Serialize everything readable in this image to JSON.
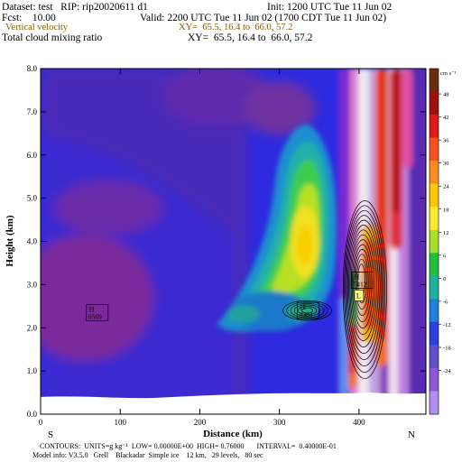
{
  "header": {
    "dataset_line": "Dataset: test   RIP: rip20020611 d1",
    "init_line": "Init: 1200 UTC Tue 11 Jun 02",
    "fcst_line": "Fcst:    10.00",
    "valid_line": "Valid: 2200 UTC Tue 11 Jun 02 (1700 CDT Tue 11 Jun 02)",
    "overlay_field": "Vertical velocity",
    "overlay_xy": "XY=  65.5, 16.4 to  66.0, 57.2",
    "main_field": "Total cloud mixing ratio",
    "main_xy": "XY=  65.5, 16.4 to  66.0, 57.2",
    "colors": {
      "overlay": "#8b5a00",
      "text": "#000000"
    }
  },
  "chart_data": {
    "type": "heatmap",
    "title": "Total cloud mixing ratio",
    "overlay": "Vertical velocity",
    "xlabel": "Distance (km)",
    "ylabel": "Height (km)",
    "xlim": [
      0,
      484
    ],
    "ylim": [
      0,
      8
    ],
    "xticks": [
      "0",
      "100",
      "200",
      "300",
      "400"
    ],
    "yticks": [
      "0.0",
      "1.0",
      "2.0",
      "3.0",
      "4.0",
      "5.0",
      "6.0",
      "7.0",
      "8.0"
    ],
    "endpoint_labels": {
      "left": "S",
      "right": "N"
    },
    "colorbar": {
      "unit": "cm s⁻¹",
      "levels": [
        48,
        42,
        36,
        30,
        24,
        18,
        12,
        6,
        0,
        -6,
        -12,
        -18,
        -24
      ],
      "labels": [
        "48",
        "42",
        "36",
        "30",
        "24",
        "18",
        "12",
        "6",
        "0",
        "-6",
        "-12",
        "-18",
        "-24"
      ]
    },
    "markers": [
      {
        "type": "H",
        "value": "0569",
        "x": 70,
        "y": 2.35
      },
      {
        "type": "H",
        "value": "4304",
        "x": 335,
        "y": 2.4
      },
      {
        "type": "H",
        "value": "7412",
        "x": 403,
        "y": 3.1
      },
      {
        "type": "L",
        "value": "",
        "x": 400,
        "y": 2.75
      }
    ],
    "terrain_height_km": 0.35
  },
  "footer": {
    "contours_line": "CONTOURS:  UNITS=g kg⁻¹  LOW= 0.00000E+00  HIGH= 0.76000       INTERVAL=  0.40000E-01",
    "model_line": "Model info: V3.5.0   Grell    Blackadar  Simple ice    12 km,   29 levels,   80 sec"
  }
}
